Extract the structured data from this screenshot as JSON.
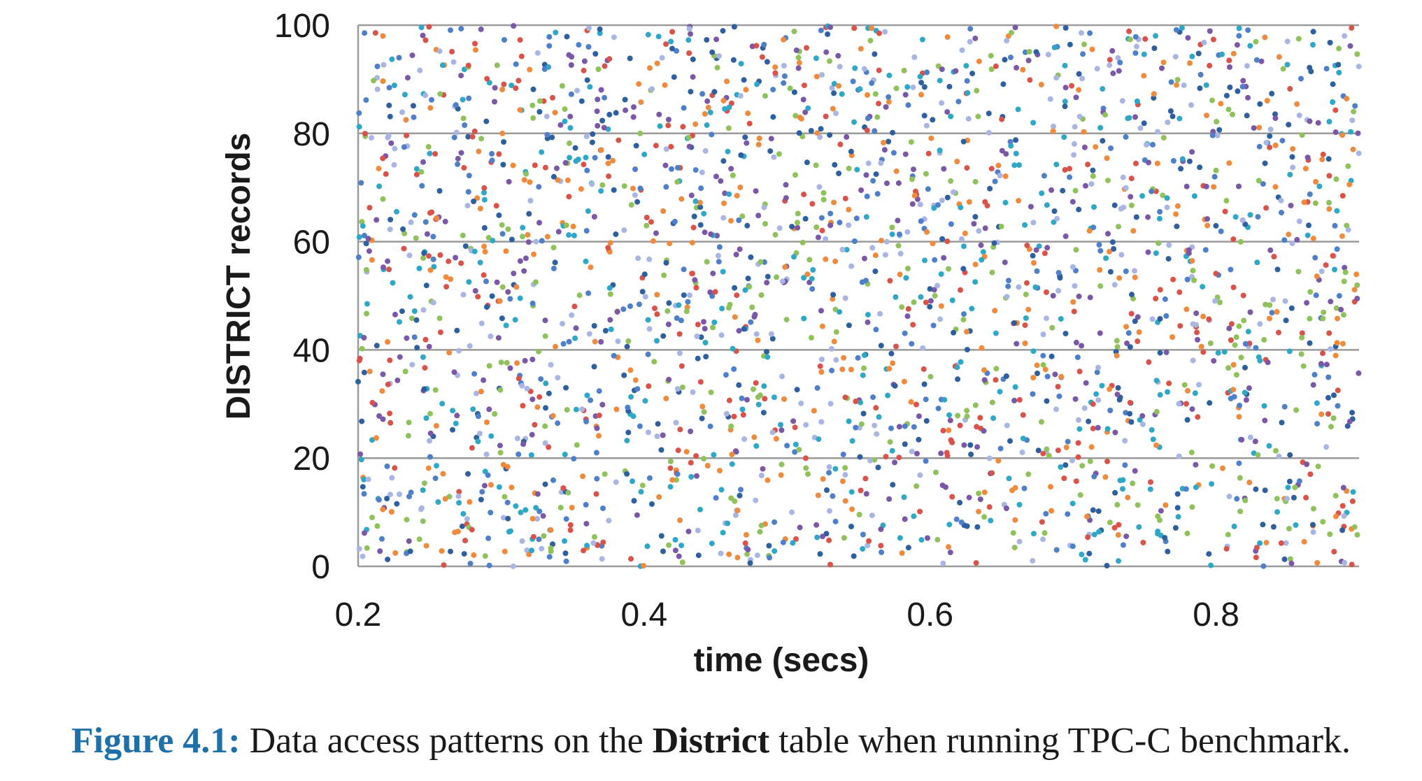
{
  "chart_data": {
    "type": "scatter",
    "xlabel": "time (secs)",
    "ylabel": "DISTRICT records",
    "xlim": [
      0.2,
      0.9
    ],
    "ylim": [
      0,
      100
    ],
    "x_ticks": [
      "0.2",
      "0.4",
      "0.6",
      "0.8"
    ],
    "x_tick_values": [
      0.2,
      0.4,
      0.6,
      0.8
    ],
    "y_ticks": [
      "0",
      "20",
      "40",
      "60",
      "80",
      "100"
    ],
    "y_tick_values": [
      0,
      20,
      40,
      60,
      80,
      100
    ],
    "grid": "horizontal",
    "point_colors": [
      "#4e7fc9",
      "#d9534a",
      "#8fc25a",
      "#7b57a8",
      "#2fa8c8",
      "#f08a3c",
      "#a9b6e3",
      "#2e5f9e"
    ],
    "point_count": 2600,
    "distribution": "uniform random over x 0.2–0.9 and y 0–100"
  },
  "caption": {
    "label": "Figure 4.1:",
    "text_before": "Data access patterns on the",
    "bold": "District",
    "text_after": "table when running TPC-C benchmark."
  }
}
